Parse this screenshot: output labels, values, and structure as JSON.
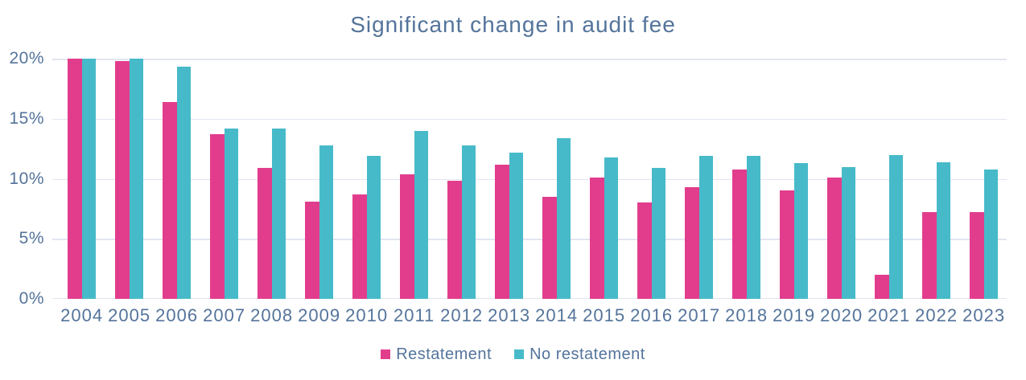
{
  "title": "Significant change in audit fee",
  "colors": {
    "restatement": "#E23D8C",
    "no_restatement": "#47BAC9",
    "text": "#54749B",
    "gridline": "#E2E5F0",
    "plot_background": "#FFFFFF"
  },
  "legend": {
    "items": [
      {
        "label": "Restatement",
        "color": "#E23D8C"
      },
      {
        "label": "No restatement",
        "color": "#47BAC9"
      }
    ]
  },
  "chart_data": {
    "type": "bar",
    "title": "Significant change in audit fee",
    "categories": [
      "2004",
      "2005",
      "2006",
      "2007",
      "2008",
      "2009",
      "2010",
      "2011",
      "2012",
      "2013",
      "2014",
      "2015",
      "2016",
      "2017",
      "2018",
      "2019",
      "2020",
      "2021",
      "2022",
      "2023"
    ],
    "series": [
      {
        "name": "Restatement",
        "color": "#E23D8C",
        "values": [
          20.0,
          19.8,
          16.4,
          13.7,
          10.9,
          8.1,
          8.7,
          10.4,
          9.8,
          11.2,
          8.5,
          10.1,
          8.0,
          9.3,
          10.8,
          9.0,
          10.1,
          2.0,
          7.2,
          7.2
        ]
      },
      {
        "name": "No restatement",
        "color": "#47BAC9",
        "values": [
          20.0,
          20.0,
          19.3,
          14.2,
          14.2,
          12.8,
          11.9,
          14.0,
          12.8,
          12.2,
          13.4,
          11.8,
          10.9,
          11.9,
          11.9,
          11.3,
          11.0,
          12.0,
          11.4,
          10.8
        ]
      }
    ],
    "xlabel": "",
    "ylabel": "",
    "ylim": [
      0,
      20
    ],
    "y_ticks": [
      {
        "value": 20,
        "label": "20%"
      },
      {
        "value": 15,
        "label": "15%"
      },
      {
        "value": 10,
        "label": "10%"
      },
      {
        "value": 5,
        "label": "5%"
      },
      {
        "value": 0,
        "label": "0%"
      }
    ],
    "grid": true,
    "legend_position": "bottom"
  }
}
